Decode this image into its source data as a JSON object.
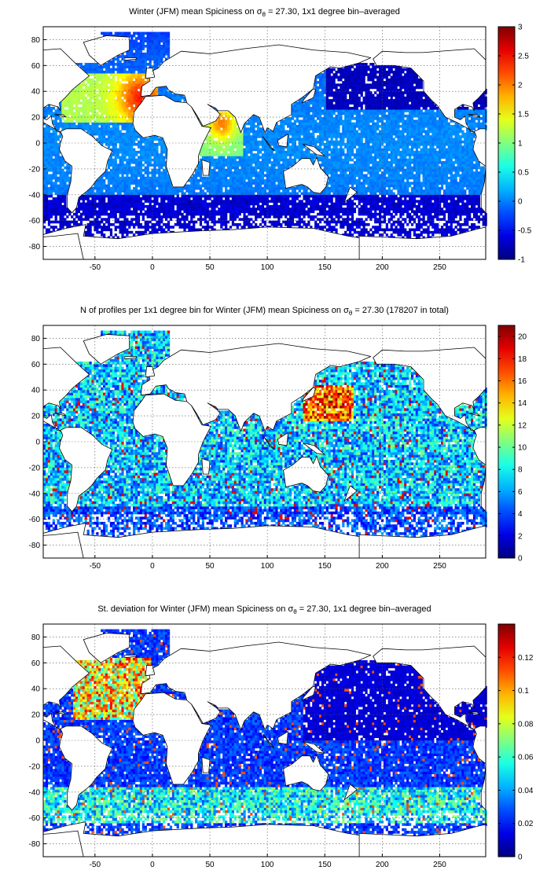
{
  "chart_data": [
    {
      "type": "heatmap",
      "title_prefix": "Winter (JFM) mean Spiciness on ",
      "title_symbol": "σ",
      "title_sub": "θ",
      "title_suffix": " = 27.30, 1x1 degree bin–averaged",
      "xlim": [
        -95,
        290
      ],
      "ylim": [
        -90,
        90
      ],
      "xticks": [
        -50,
        0,
        50,
        100,
        150,
        200,
        250
      ],
      "yticks": [
        -80,
        -60,
        -40,
        -20,
        0,
        20,
        40,
        60,
        80
      ],
      "grid": true,
      "colormap": "jet",
      "colorbar": {
        "min": -1,
        "max": 3,
        "ticks": [
          -1,
          -0.5,
          0,
          0.5,
          1,
          1.5,
          2,
          2.5,
          3
        ],
        "placement": "right"
      }
    },
    {
      "type": "heatmap",
      "title_prefix": "N of profiles per 1x1 degree bin for Winter (JFM) mean Spiciness on ",
      "title_symbol": "σ",
      "title_sub": "θ",
      "title_suffix": " = 27.30 (178207 in total)",
      "xlim": [
        -95,
        290
      ],
      "ylim": [
        -90,
        90
      ],
      "xticks": [
        -50,
        0,
        50,
        100,
        150,
        200,
        250
      ],
      "yticks": [
        -80,
        -60,
        -40,
        -20,
        0,
        20,
        40,
        60,
        80
      ],
      "grid": true,
      "colormap": "jet",
      "colorbar": {
        "min": 0,
        "max": 21,
        "ticks": [
          0,
          2,
          4,
          6,
          8,
          10,
          12,
          14,
          16,
          18,
          20
        ],
        "placement": "right"
      }
    },
    {
      "type": "heatmap",
      "title_prefix": "St. deviation for Winter (JFM) mean Spiciness on ",
      "title_symbol": "σ",
      "title_sub": "θ",
      "title_suffix": " = 27.30, 1x1 degree bin–averaged",
      "xlim": [
        -95,
        290
      ],
      "ylim": [
        -90,
        90
      ],
      "xticks": [
        -50,
        0,
        50,
        100,
        150,
        200,
        250
      ],
      "yticks": [
        -80,
        -60,
        -40,
        -20,
        0,
        20,
        40,
        60,
        80
      ],
      "grid": true,
      "colormap": "jet",
      "colorbar": {
        "min": 0,
        "max": 0.14,
        "ticks": [
          0,
          0.02,
          0.04,
          0.06,
          0.08,
          0.1,
          0.12
        ],
        "placement": "right"
      }
    }
  ]
}
